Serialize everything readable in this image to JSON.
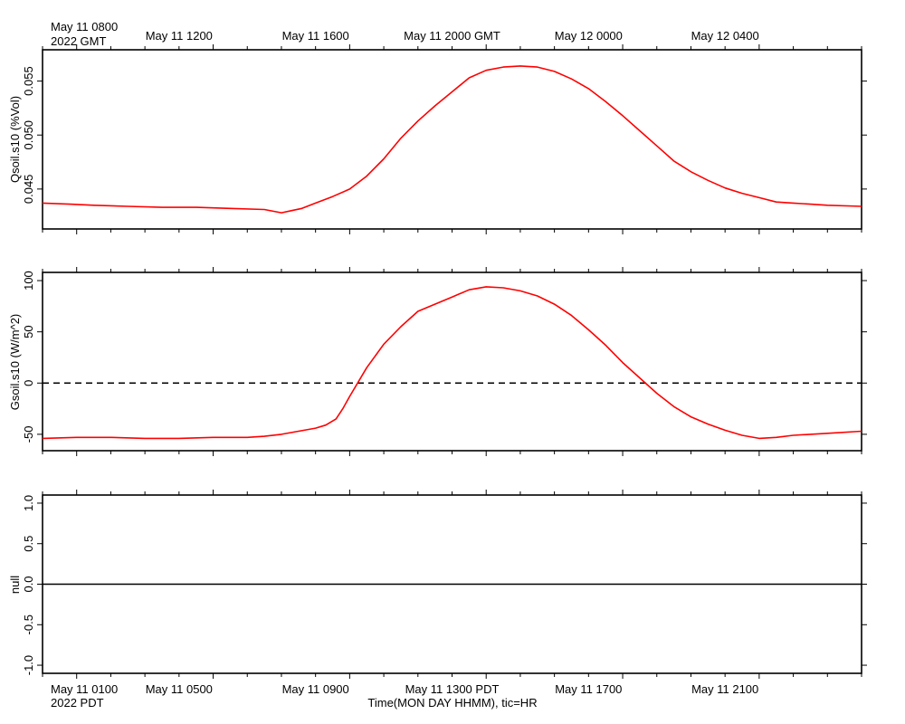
{
  "figure": {
    "top_time_label_line1": "May 11 0800",
    "top_time_label_line2": "2022 GMT",
    "top_ticks": [
      "May 11 1200",
      "May 11 1600",
      "May 11 2000 GMT",
      "May 12 0000",
      "May 12 0400"
    ],
    "bottom_time_label_line1": "May 11 0100",
    "bottom_time_label_line2": "2022 PDT",
    "bottom_ticks": [
      "May 11 0500",
      "May 11 0900",
      "May 11 1300 PDT",
      "May 11 1700",
      "May 11 2100"
    ],
    "xlabel": "Time(MON DAY HHMM), tic=HR"
  },
  "chart_data": [
    {
      "type": "line",
      "ylabel": "Qsoil.s10 (%Vol)",
      "x_unit": "hours since May 11 0800 GMT",
      "xlim": [
        0,
        24
      ],
      "ylim": [
        0.0413,
        0.0579
      ],
      "yticks": [
        "0.045",
        "0.050",
        "0.055"
      ],
      "ytick_values": [
        0.045,
        0.05,
        0.055
      ],
      "grid": false,
      "series": [
        {
          "color": "#ff0000",
          "x": [
            0,
            0.8,
            1.5,
            2.5,
            3.5,
            4.5,
            5.5,
            6.5,
            7.0,
            7.3,
            7.6,
            8.0,
            8.5,
            9.0,
            9.5,
            10.0,
            10.5,
            11.0,
            11.5,
            12.0,
            12.5,
            13.0,
            13.5,
            14.0,
            14.5,
            15.0,
            15.5,
            16.0,
            16.5,
            17.0,
            17.5,
            18.0,
            18.5,
            19.0,
            19.5,
            20.0,
            20.5,
            21.0,
            21.5,
            22.0,
            22.5,
            23.0,
            24.0
          ],
          "y": [
            0.0437,
            0.0436,
            0.0435,
            0.0434,
            0.0433,
            0.0433,
            0.0432,
            0.0431,
            0.0428,
            0.043,
            0.0432,
            0.0437,
            0.0443,
            0.045,
            0.0462,
            0.0478,
            0.0497,
            0.0513,
            0.0527,
            0.054,
            0.0553,
            0.056,
            0.0563,
            0.0564,
            0.0563,
            0.0559,
            0.0552,
            0.0543,
            0.0531,
            0.0518,
            0.0504,
            0.049,
            0.0476,
            0.0466,
            0.0458,
            0.0451,
            0.0446,
            0.0442,
            0.0438,
            0.0437,
            0.0436,
            0.0435,
            0.0434
          ]
        }
      ]
    },
    {
      "type": "line",
      "ylabel": "Gsoil.s10 (W/m^2)",
      "x_unit": "hours since May 11 0100 PDT",
      "xlim": [
        0,
        24
      ],
      "ylim": [
        -66,
        108
      ],
      "yticks": [
        "-50",
        "0",
        "50",
        "100"
      ],
      "ytick_values": [
        -50,
        0,
        50,
        100
      ],
      "reference_line": 0,
      "grid": false,
      "series": [
        {
          "color": "#ff0000",
          "x": [
            0,
            1,
            2,
            3,
            4,
            5,
            6,
            6.5,
            7,
            7.5,
            8.0,
            8.3,
            8.6,
            8.8,
            9.0,
            9.5,
            10.0,
            10.5,
            11.0,
            11.5,
            12.0,
            12.5,
            13.0,
            13.5,
            14.0,
            14.5,
            15.0,
            15.5,
            16.0,
            16.5,
            17.0,
            17.5,
            18.0,
            18.5,
            19.0,
            19.5,
            20.0,
            20.5,
            21.0,
            21.5,
            22.0,
            23.0,
            24.0
          ],
          "y": [
            -54,
            -53,
            -53,
            -54,
            -54,
            -53,
            -53,
            -52,
            -50,
            -47,
            -44,
            -41,
            -35,
            -25,
            -13,
            15,
            38,
            55,
            70,
            77,
            84,
            91,
            94,
            93,
            90,
            85,
            77,
            66,
            52,
            37,
            20,
            5,
            -10,
            -23,
            -33,
            -40,
            -46,
            -51,
            -54,
            -53,
            -51,
            -49,
            -47
          ]
        }
      ]
    },
    {
      "type": "line",
      "ylabel": "null",
      "xlim": [
        0,
        24
      ],
      "ylim": [
        -1.1,
        1.1
      ],
      "yticks": [
        "-1.0",
        "-0.5",
        "0.0",
        "0.5",
        "1.0"
      ],
      "ytick_values": [
        -1.0,
        -0.5,
        0.0,
        0.5,
        1.0
      ],
      "reference_line": 0,
      "grid": false,
      "series": []
    }
  ]
}
